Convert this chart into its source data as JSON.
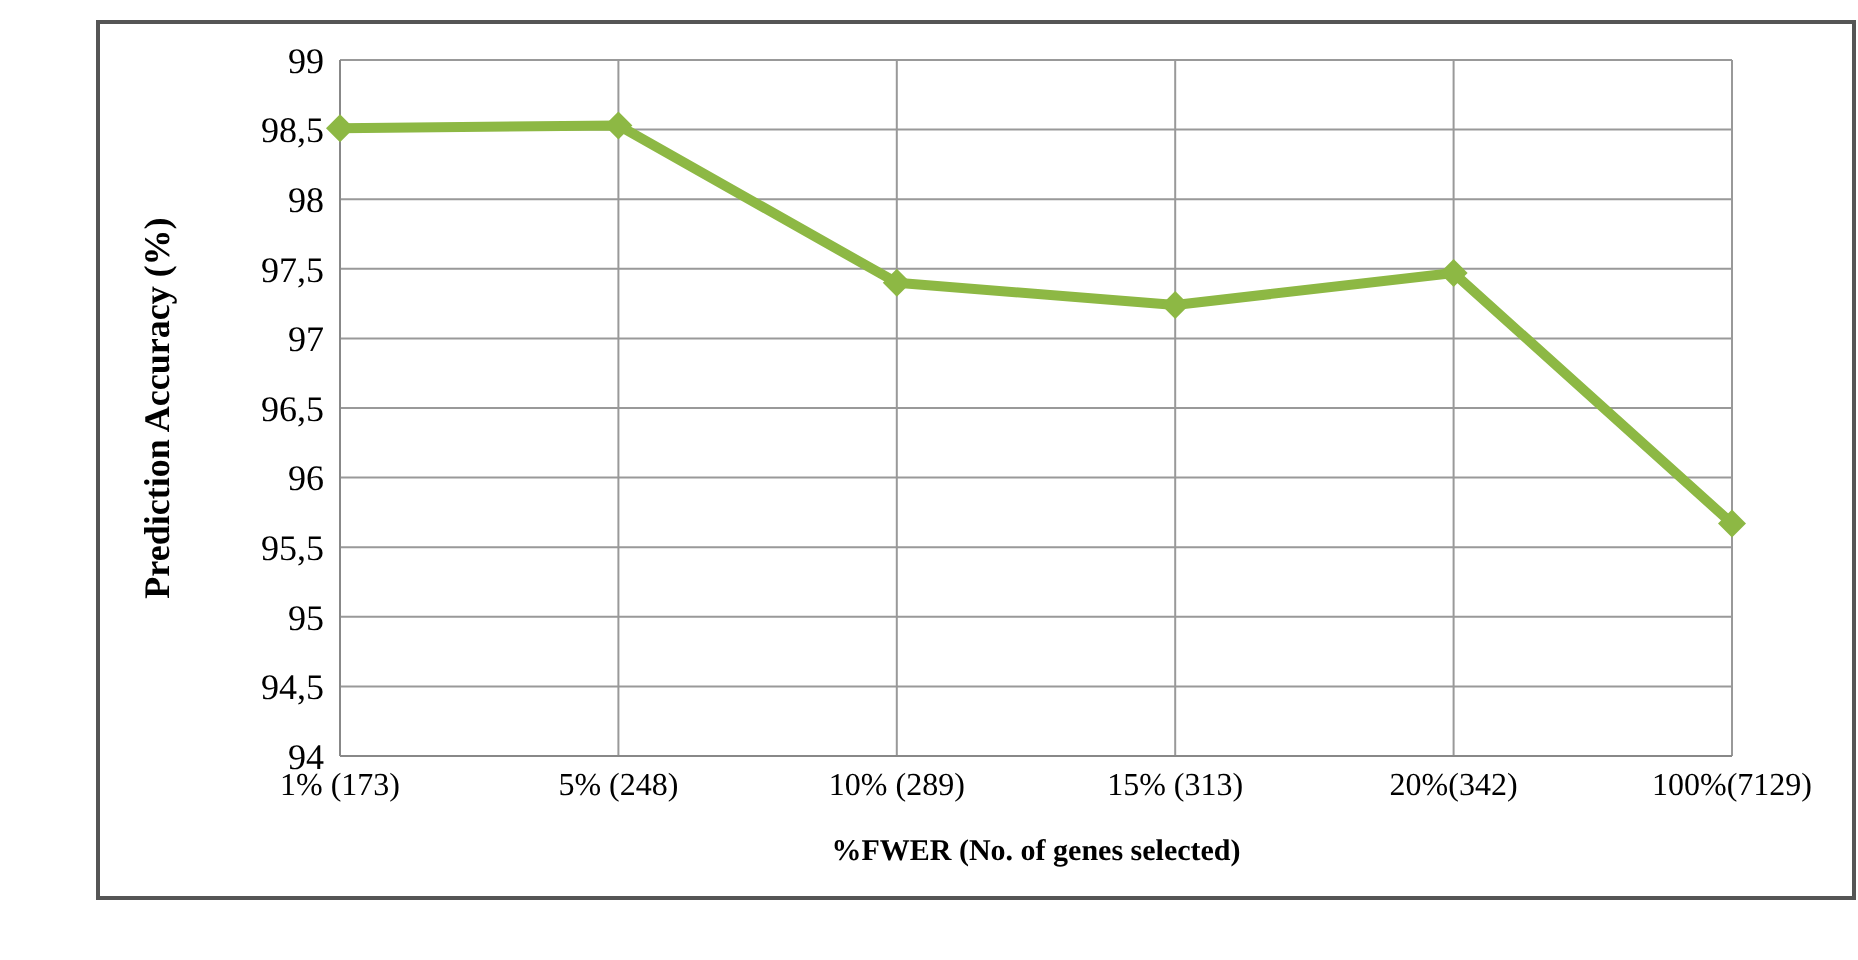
{
  "chart_data": {
    "type": "line",
    "xlabel": "%FWER  (No. of genes selected)",
    "ylabel": "Prediction Accuracy (%)",
    "categories": [
      "1% (173)",
      "5% (248)",
      "10% (289)",
      "15% (313)",
      "20%(342)",
      "100%(7129)"
    ],
    "series": [
      {
        "color": "#8db844",
        "values": [
          98.51,
          98.53,
          97.4,
          97.24,
          97.47,
          95.67
        ]
      }
    ],
    "ylim": [
      94,
      99
    ],
    "yticks": [
      94,
      {
        "value": 94.5,
        "label": "94,5"
      },
      95,
      {
        "value": 95.5,
        "label": "95,5"
      },
      96,
      {
        "value": 96.5,
        "label": "96,5"
      },
      97,
      {
        "value": 97.5,
        "label": "97,5"
      },
      98,
      {
        "value": 98.5,
        "label": "98,5"
      },
      99
    ],
    "grid": true,
    "marker": "diamond",
    "line_style": "solid"
  }
}
